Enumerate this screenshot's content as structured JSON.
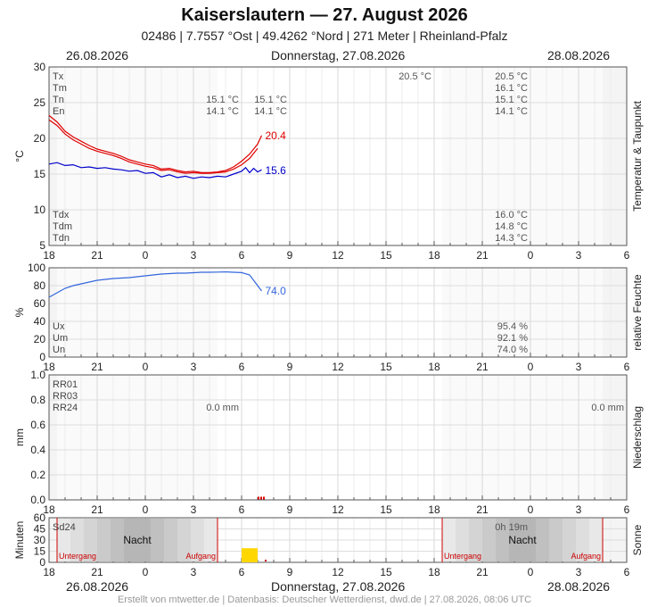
{
  "header": {
    "title": "Kaiserslautern  —  27. August 2026",
    "subtitle": "02486  |  7.7557 °Ost  |  49.4262 °Nord  |  271 Meter  |  Rheinland-Pfalz"
  },
  "dates": {
    "left": "26.08.2026",
    "center": "Donnerstag, 27.08.2026",
    "right": "28.08.2026"
  },
  "footer": "Erstellt von mtwetter.de | Datenbasis: Deutscher Wetterdienst, dwd.de | 27.08.2026, 08:06 UTC",
  "colors": {
    "temperature": "#e00000",
    "dewpoint": "#0000cc",
    "humidity": "#3366dd",
    "precip": "#dd0000",
    "sunshine": "#ffd700",
    "markers": "#cc0000",
    "night": "#bbbbbb"
  },
  "x_ticks": [
    "18",
    "21",
    "0",
    "3",
    "6",
    "9",
    "12",
    "15",
    "18",
    "21",
    "0",
    "3",
    "6"
  ],
  "chart_data": [
    {
      "type": "line",
      "ylabel": "°C",
      "side_label": "Temperatur & Taupunkt",
      "ylim": [
        5,
        30
      ],
      "y_ticks": [
        "30",
        "25",
        "20",
        "15",
        "10",
        "5"
      ],
      "xlim_hours": [
        -6,
        30
      ],
      "stats_top": [
        {
          "label": "Tx",
          "v1": "",
          "v2": "",
          "v3": "20.5 °C",
          "v4": "20.5 °C"
        },
        {
          "label": "Tm",
          "v1": "",
          "v2": "",
          "v3": "",
          "v4": "16.1 °C"
        },
        {
          "label": "Tn",
          "v1": "15.1 °C",
          "v2": "15.1 °C",
          "v3": "",
          "v4": "15.1 °C"
        },
        {
          "label": "En",
          "v1": "14.1 °C",
          "v2": "14.1 °C",
          "v3": "",
          "v4": "14.1 °C"
        }
      ],
      "stats_bottom": [
        {
          "label": "Tdx",
          "value": "16.0 °C"
        },
        {
          "label": "Tdm",
          "value": "14.8 °C"
        },
        {
          "label": "Tdn",
          "value": "14.3 °C"
        }
      ],
      "end_labels": {
        "temperature": "20.4",
        "dewpoint": "15.6"
      },
      "series": [
        {
          "key": "temperature",
          "x": [
            -6,
            -5.5,
            -5,
            -4.5,
            -4,
            -3.5,
            -3,
            -2.5,
            -2,
            -1.5,
            -1,
            -0.5,
            0,
            0.5,
            1,
            1.5,
            2,
            2.5,
            3,
            3.5,
            4,
            4.5,
            5,
            5.5,
            6,
            6.5,
            7,
            7.25
          ],
          "y": [
            23.2,
            22.3,
            21.0,
            20.2,
            19.6,
            19.0,
            18.5,
            18.2,
            17.9,
            17.5,
            17.0,
            16.7,
            16.4,
            16.2,
            15.7,
            15.8,
            15.5,
            15.3,
            15.4,
            15.2,
            15.2,
            15.3,
            15.5,
            16.0,
            16.8,
            17.8,
            19.2,
            20.4
          ]
        },
        {
          "key": "temperature2",
          "x": [
            -6,
            -5.5,
            -5,
            -4.5,
            -4,
            -3.5,
            -3,
            -2.5,
            -2,
            -1.5,
            -1,
            -0.5,
            0,
            0.5,
            1,
            1.5,
            2,
            2.5,
            3,
            3.5,
            4,
            4.5,
            5,
            5.5,
            6,
            6.5,
            7
          ],
          "y": [
            22.6,
            21.8,
            20.6,
            19.8,
            19.2,
            18.6,
            18.2,
            17.9,
            17.6,
            17.2,
            16.7,
            16.4,
            16.1,
            15.9,
            15.5,
            15.6,
            15.3,
            15.1,
            15.2,
            15.1,
            15.1,
            15.2,
            15.3,
            15.7,
            16.3,
            17.2,
            18.6
          ]
        },
        {
          "key": "dewpoint",
          "x": [
            -6,
            -5.5,
            -5,
            -4.5,
            -4,
            -3.5,
            -3,
            -2.5,
            -2,
            -1.5,
            -1,
            -0.5,
            0,
            0.5,
            1,
            1.5,
            2,
            2.5,
            3,
            3.5,
            4,
            4.5,
            5,
            5.5,
            6,
            6.25,
            6.5,
            6.75,
            7,
            7.25
          ],
          "y": [
            16.4,
            16.6,
            16.2,
            16.3,
            15.9,
            16.0,
            15.8,
            15.9,
            15.7,
            15.6,
            15.4,
            15.5,
            15.1,
            15.2,
            14.6,
            14.9,
            14.5,
            14.7,
            14.4,
            14.6,
            14.5,
            14.7,
            14.6,
            15.0,
            15.4,
            15.9,
            15.2,
            15.8,
            15.3,
            15.6
          ]
        }
      ]
    },
    {
      "type": "line",
      "ylabel": "%",
      "side_label": "relative Feuchte",
      "ylim": [
        0,
        100
      ],
      "y_ticks": [
        "100",
        "80",
        "60",
        "40",
        "20",
        "0"
      ],
      "stats": [
        {
          "label": "Ux",
          "value": "95.4 %"
        },
        {
          "label": "Um",
          "value": "92.1 %"
        },
        {
          "label": "Un",
          "value": "74.0 %"
        }
      ],
      "end_label": "74.0",
      "series": [
        {
          "key": "humidity",
          "x": [
            -6,
            -5.5,
            -5,
            -4.5,
            -4,
            -3.5,
            -3,
            -2.5,
            -2,
            -1.5,
            -1,
            -0.5,
            0,
            0.5,
            1,
            1.5,
            2,
            2.5,
            3,
            3.5,
            4,
            4.5,
            5,
            5.5,
            6,
            6.5,
            7,
            7.25
          ],
          "y": [
            67,
            72,
            77,
            80,
            82,
            84,
            86,
            87,
            88,
            88.5,
            89,
            90,
            91,
            92,
            93,
            93.5,
            94,
            94,
            94.5,
            95,
            95,
            95.2,
            95.4,
            95,
            94.6,
            92,
            80,
            74
          ]
        }
      ]
    },
    {
      "type": "bar",
      "ylabel": "mm",
      "side_label": "Niederschlag",
      "ylim": [
        0,
        1.0
      ],
      "y_ticks": [
        "1.0",
        "0.8",
        "0.6",
        "0.4",
        "0.2",
        "0.0"
      ],
      "stats": [
        {
          "label": "RR01",
          "v1": "",
          "v2": ""
        },
        {
          "label": "RR03",
          "v1": "",
          "v2": ""
        },
        {
          "label": "RR24",
          "v1": "0.0 mm",
          "v2": "0.0 mm"
        }
      ],
      "marker_hours": [
        7.0,
        7.5
      ]
    },
    {
      "type": "bar",
      "ylabel": "Minuten",
      "side_label": "Sonne",
      "ylim": [
        0,
        60
      ],
      "y_ticks": [
        "60",
        "45",
        "30",
        "15",
        "0"
      ],
      "label": "Sd24",
      "total": "0h 19m",
      "night_label": "Nacht",
      "sunset_label": "Untergang",
      "sunrise_label": "Aufgang",
      "nights": [
        {
          "sunset": -5.5,
          "sunrise": 4.5
        },
        {
          "sunset": 18.5,
          "sunrise": 28.5
        }
      ],
      "sun_bars": [
        {
          "start": 6.0,
          "end": 7.0,
          "minutes": 19
        }
      ],
      "sun_marker": 7.5
    }
  ]
}
